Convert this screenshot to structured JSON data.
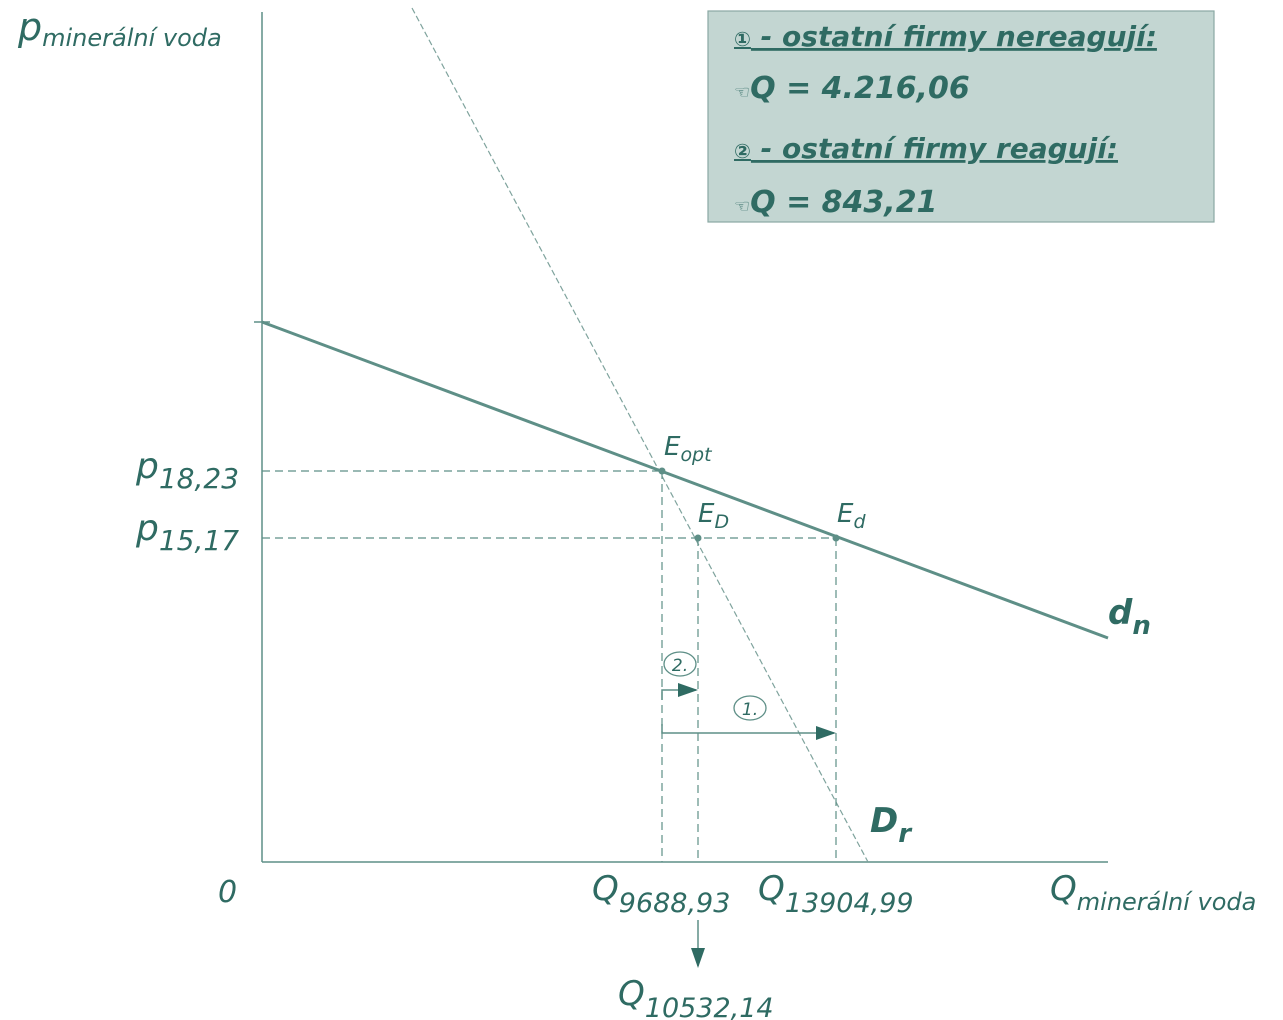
{
  "axes": {
    "y_label": {
      "main": "p",
      "sub": "minerální voda"
    },
    "x_label": {
      "main": "Q",
      "sub": "minerální voda"
    },
    "origin": "0"
  },
  "curves": {
    "dn": {
      "main": "d",
      "sub": "n"
    },
    "Dr": {
      "main": "D",
      "sub": "r"
    }
  },
  "points": {
    "Eopt": {
      "main": "E",
      "sub": "opt"
    },
    "ED": {
      "main": "E",
      "sub": "D"
    },
    "Ed": {
      "main": "E",
      "sub": "d"
    }
  },
  "y_ticks": [
    {
      "main": "p",
      "sub": "18,23"
    },
    {
      "main": "p",
      "sub": "15,17"
    }
  ],
  "x_ticks": [
    {
      "main": "Q",
      "sub": "9688,93"
    },
    {
      "main": "Q",
      "sub": "13904,99"
    },
    {
      "main": "Q",
      "sub": "10532,14"
    }
  ],
  "markers": {
    "m1": "1.",
    "m2": "2."
  },
  "infobox": {
    "line1": {
      "num": "①",
      "text": " - ostatní firmy nereagují:"
    },
    "line2": {
      "prefix": "☜",
      "text": "Q = 4.216,06"
    },
    "line3": {
      "num": "②",
      "text": " - ostatní firmy reagují:"
    },
    "line4": {
      "prefix": "☜",
      "text": "Q = 843,21"
    }
  },
  "colors": {
    "teal": "#2f6b63",
    "line": "#5e8f87",
    "box_bg": "#c3d6d2",
    "box_border": "#8aa8a3"
  }
}
